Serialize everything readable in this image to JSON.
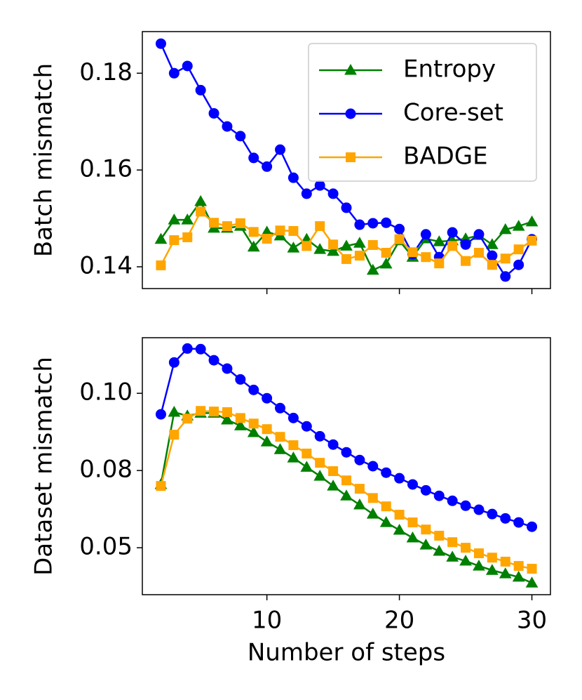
{
  "chart_data": [
    {
      "type": "line",
      "ylabel": "Batch mismatch",
      "x": [
        2,
        3,
        4,
        5,
        6,
        7,
        8,
        9,
        10,
        11,
        12,
        13,
        14,
        15,
        16,
        17,
        18,
        19,
        20,
        21,
        22,
        23,
        24,
        25,
        26,
        27,
        28,
        29,
        30
      ],
      "xlim": [
        0.6,
        31.4
      ],
      "xticks": [
        10,
        20,
        30
      ],
      "show_xtick_labels": false,
      "ylim": [
        0.1355,
        0.1886
      ],
      "yticks": [
        0.14,
        0.16,
        0.18
      ],
      "legend": "upper right",
      "series": [
        {
          "name": "Entropy",
          "color": "#008000",
          "marker": "triangle",
          "values": [
            0.1457,
            0.1497,
            0.1497,
            0.1535,
            0.148,
            0.148,
            0.1484,
            0.1441,
            0.1472,
            0.1464,
            0.1439,
            0.1457,
            0.1436,
            0.1432,
            0.1443,
            0.1449,
            0.1393,
            0.1406,
            0.1454,
            0.142,
            0.1458,
            0.1452,
            0.1454,
            0.1458,
            0.1465,
            0.1446,
            0.1477,
            0.1484,
            0.1493
          ]
        },
        {
          "name": "Core-set",
          "color": "#0000ff",
          "marker": "circle",
          "values": [
            0.1861,
            0.18,
            0.1815,
            0.1765,
            0.1717,
            0.169,
            0.167,
            0.1625,
            0.1607,
            0.1642,
            0.1584,
            0.1551,
            0.1568,
            0.1551,
            0.1522,
            0.1487,
            0.149,
            0.1491,
            0.1478,
            0.1426,
            0.1467,
            0.142,
            0.1471,
            0.1446,
            0.1467,
            0.1423,
            0.138,
            0.1404,
            0.1457
          ]
        },
        {
          "name": "BADGE",
          "color": "#ffa500",
          "marker": "square",
          "values": [
            0.1403,
            0.1455,
            0.1461,
            0.1514,
            0.1491,
            0.1484,
            0.149,
            0.1472,
            0.1458,
            0.1475,
            0.1474,
            0.1443,
            0.1484,
            0.1446,
            0.1416,
            0.1423,
            0.1445,
            0.1429,
            0.1457,
            0.143,
            0.142,
            0.1407,
            0.1443,
            0.1412,
            0.1429,
            0.1404,
            0.1417,
            0.1436,
            0.1454
          ]
        }
      ]
    },
    {
      "type": "line",
      "ylabel": "Dataset mismatch",
      "xlabel": "Number of steps",
      "x": [
        2,
        3,
        4,
        5,
        6,
        7,
        8,
        9,
        10,
        11,
        12,
        13,
        14,
        15,
        16,
        17,
        18,
        19,
        20,
        21,
        22,
        23,
        24,
        25,
        26,
        27,
        28,
        29,
        30
      ],
      "xlim": [
        0.6,
        31.4
      ],
      "xticks": [
        10,
        20,
        30
      ],
      "show_xtick_labels": true,
      "ylim": [
        0.0348,
        0.118
      ],
      "yticks": [
        {
          "value": 0.05,
          "label": "0.05"
        },
        {
          "value": 0.075,
          "label": "0.08"
        },
        {
          "value": 0.1,
          "label": "0.10"
        }
      ],
      "series": [
        {
          "name": "Entropy",
          "color": "#008000",
          "marker": "triangle",
          "values": [
            0.0705,
            0.0939,
            0.0927,
            0.0936,
            0.0936,
            0.0914,
            0.0895,
            0.0873,
            0.0843,
            0.0818,
            0.0791,
            0.0761,
            0.0732,
            0.07,
            0.0668,
            0.0639,
            0.0609,
            0.0582,
            0.0557,
            0.0532,
            0.0509,
            0.0489,
            0.047,
            0.0457,
            0.0441,
            0.0427,
            0.0416,
            0.0405,
            0.0386
          ]
        },
        {
          "name": "Core-set",
          "color": "#0000ff",
          "marker": "circle",
          "values": [
            0.0932,
            0.11,
            0.1145,
            0.1143,
            0.1107,
            0.108,
            0.1045,
            0.1011,
            0.0984,
            0.0952,
            0.092,
            0.0893,
            0.0861,
            0.0834,
            0.0809,
            0.0784,
            0.0764,
            0.0743,
            0.0725,
            0.0705,
            0.0686,
            0.0668,
            0.0652,
            0.0636,
            0.0623,
            0.0609,
            0.0595,
            0.0582,
            0.0568
          ]
        },
        {
          "name": "BADGE",
          "color": "#ffa500",
          "marker": "square",
          "values": [
            0.07,
            0.0866,
            0.0918,
            0.0943,
            0.0941,
            0.0939,
            0.092,
            0.0902,
            0.0884,
            0.0859,
            0.0832,
            0.0805,
            0.0775,
            0.0748,
            0.0718,
            0.0691,
            0.0661,
            0.0634,
            0.0607,
            0.0582,
            0.0559,
            0.0539,
            0.0518,
            0.05,
            0.0482,
            0.0468,
            0.0455,
            0.0441,
            0.0432
          ]
        }
      ]
    }
  ]
}
